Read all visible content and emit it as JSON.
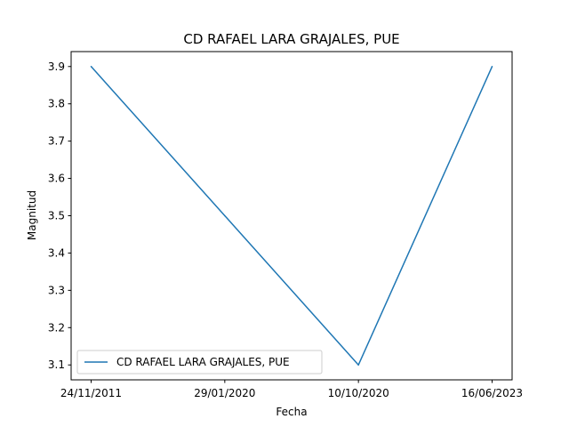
{
  "chart_data": {
    "type": "line",
    "title": "CD RAFAEL LARA GRAJALES, PUE",
    "xlabel": "Fecha",
    "ylabel": "Magnitud",
    "categories": [
      "24/11/2011",
      "29/01/2020",
      "10/10/2020",
      "16/06/2023"
    ],
    "series": [
      {
        "name": "CD RAFAEL LARA GRAJALES, PUE",
        "color": "#1f77b4",
        "values": [
          3.9,
          3.5,
          3.1,
          3.9
        ]
      }
    ],
    "yticks": [
      3.1,
      3.2,
      3.3,
      3.4,
      3.5,
      3.6,
      3.7,
      3.8,
      3.9
    ],
    "ylim": [
      3.06,
      3.94
    ],
    "grid": false,
    "legend": "lower-left"
  }
}
